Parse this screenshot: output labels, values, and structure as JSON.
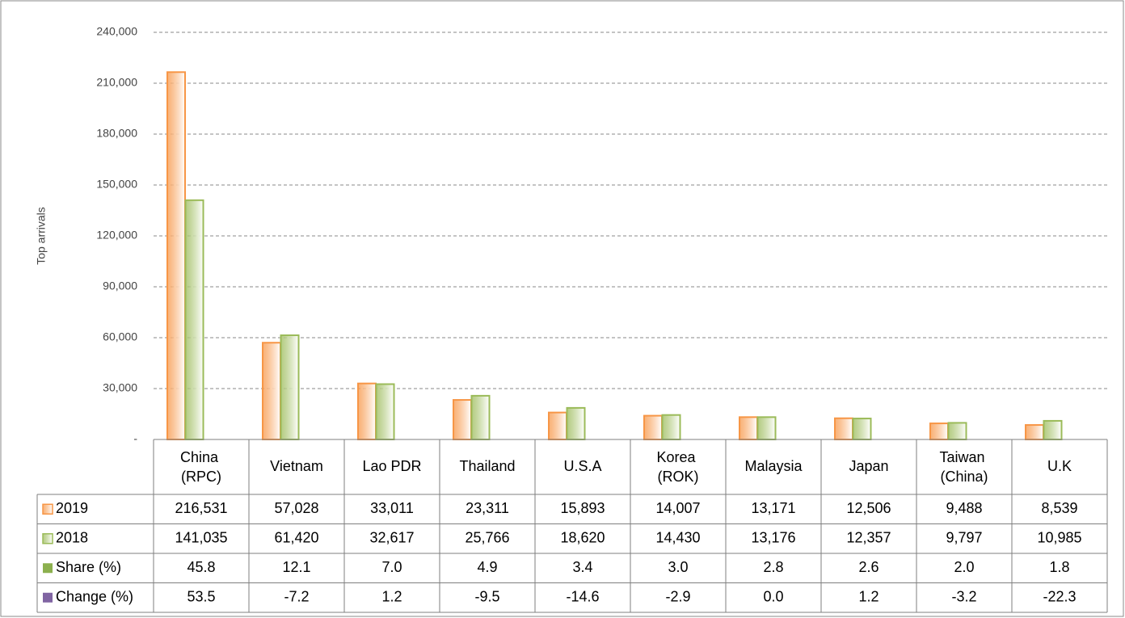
{
  "chart_data": {
    "type": "bar",
    "y_label": "Top arrivals",
    "categories": [
      "China (RPC)",
      "Vietnam",
      "Lao PDR",
      "Thailand",
      "U.S.A",
      "Korea (ROK)",
      "Malaysia",
      "Japan",
      "Taiwan (China)",
      "U.K"
    ],
    "series": [
      {
        "name": "2019",
        "color": "#f79646",
        "values": [
          216531,
          57028,
          33011,
          23311,
          15893,
          14007,
          13171,
          12506,
          9488,
          8539
        ],
        "value_labels": [
          "216,531",
          "57,028",
          "33,011",
          "23,311",
          "15,893",
          "14,007",
          "13,171",
          "12,506",
          "9,488",
          "8,539"
        ]
      },
      {
        "name": "2018",
        "color": "#9bbb59",
        "values": [
          141035,
          61420,
          32617,
          25766,
          18620,
          14430,
          13176,
          12357,
          9797,
          10985
        ],
        "value_labels": [
          "141,035",
          "61,420",
          "32,617",
          "25,766",
          "18,620",
          "14,430",
          "13,176",
          "12,357",
          "9,797",
          "10,985"
        ]
      }
    ],
    "table_rows": [
      {
        "name": "Share (%)",
        "color": "#8cb04e",
        "values": [
          45.8,
          12.1,
          7.0,
          4.9,
          3.4,
          3.0,
          2.8,
          2.6,
          2.0,
          1.8
        ],
        "value_labels": [
          "45.8",
          "12.1",
          "7.0",
          "4.9",
          "3.4",
          "3.0",
          "2.8",
          "2.6",
          "2.0",
          "1.8"
        ]
      },
      {
        "name": "Change (%)",
        "color": "#8064a2",
        "values": [
          53.5,
          -7.2,
          1.2,
          -9.5,
          -14.6,
          -2.9,
          0.0,
          1.2,
          -3.2,
          -22.3
        ],
        "value_labels": [
          "53.5",
          "-7.2",
          "1.2",
          "-9.5",
          "-14.6",
          "-2.9",
          "0.0",
          "1.2",
          "-3.2",
          "-22.3"
        ]
      }
    ],
    "ylim": [
      0,
      240000
    ],
    "yticks": [
      {
        "value": 0,
        "label": "-"
      },
      {
        "value": 30000,
        "label": "30,000"
      },
      {
        "value": 60000,
        "label": "60,000"
      },
      {
        "value": 90000,
        "label": "90,000"
      },
      {
        "value": 120000,
        "label": "120,000"
      },
      {
        "value": 150000,
        "label": "150,000"
      },
      {
        "value": 180000,
        "label": "180,000"
      },
      {
        "value": 210000,
        "label": "210,000"
      },
      {
        "value": 240000,
        "label": "240,000"
      }
    ],
    "grid": true
  }
}
